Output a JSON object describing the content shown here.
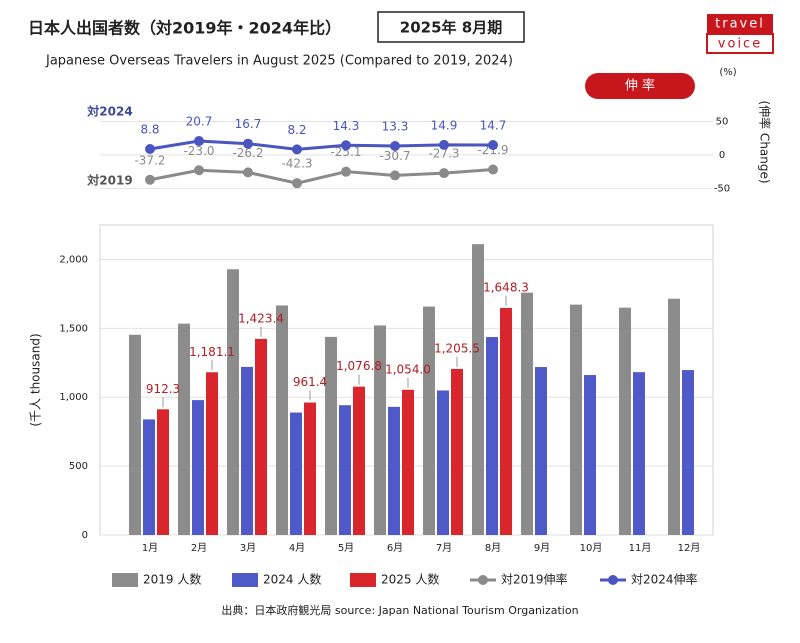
{
  "title": "日本人出国者数（対2019年・2024年比）",
  "period": "2025年 8月期",
  "subtitle": "Japanese Overseas Travelers in August 2025 (Compared to 2019, 2024)",
  "logo": {
    "top": "travel",
    "bottom": "voice"
  },
  "source": "出典：日本政府観光局  source: Japan National Tourism Organization",
  "chart_data": [
    {
      "type": "line",
      "badge": "伸 率",
      "unit": "(%)",
      "y_label": "(伸率 Change)",
      "ylim": [
        -60,
        100
      ],
      "yticks": [
        50,
        0,
        -50
      ],
      "series": [
        {
          "name": "対2019伸率",
          "label": "対2019",
          "color": "#8a8a8a",
          "values": [
            -37.2,
            -23.0,
            -26.2,
            -42.3,
            -25.1,
            -30.7,
            -27.3,
            -21.9
          ],
          "value_labels": [
            "-37.2",
            "-23.0",
            "-26.2",
            "-42.3",
            "-25.1",
            "-30.7",
            "-27.3",
            "-21.9"
          ]
        },
        {
          "name": "対2024伸率",
          "label": "対2024",
          "color": "#4a55c0",
          "values": [
            8.8,
            20.7,
            16.7,
            8.2,
            14.3,
            13.3,
            14.9,
            14.7
          ]
        }
      ]
    },
    {
      "type": "bar",
      "y_label": "(千人 thousand)",
      "categories": [
        "1月",
        "2月",
        "3月",
        "4月",
        "5月",
        "6月",
        "7月",
        "8月",
        "9月",
        "10月",
        "11月",
        "12月"
      ],
      "ylim": [
        0,
        2250
      ],
      "yticks": [
        0,
        500,
        {
          "value": 1000,
          "label": "1,000"
        },
        {
          "value": 1500,
          "label": "1,500"
        },
        {
          "value": 2000,
          "label": "2,000"
        }
      ],
      "series": [
        {
          "name": "2019 人数",
          "color": "#8c8c8c",
          "values": [
            1453,
            1534,
            1929,
            1666,
            1438,
            1521,
            1658,
            2111,
            1759,
            1672,
            1650,
            1715
          ]
        },
        {
          "name": "2024 人数",
          "color": "#4f59c8",
          "values": [
            839,
            979,
            1220,
            889,
            942,
            930,
            1049,
            1437,
            1219,
            1161,
            1182,
            1197
          ]
        },
        {
          "name": "2025 人数",
          "color": "#d8262c",
          "values": [
            912.3,
            1181.1,
            1423.4,
            961.4,
            1076.8,
            1054.0,
            1205.5,
            1648.3,
            null,
            null,
            null,
            null
          ],
          "value_labels": [
            "912.3",
            "1,181.1",
            "1,423.4",
            "961.4",
            "1,076.8",
            "1,054.0",
            "1,205.5",
            "1,648.3",
            null,
            null,
            null,
            null
          ]
        }
      ]
    }
  ]
}
